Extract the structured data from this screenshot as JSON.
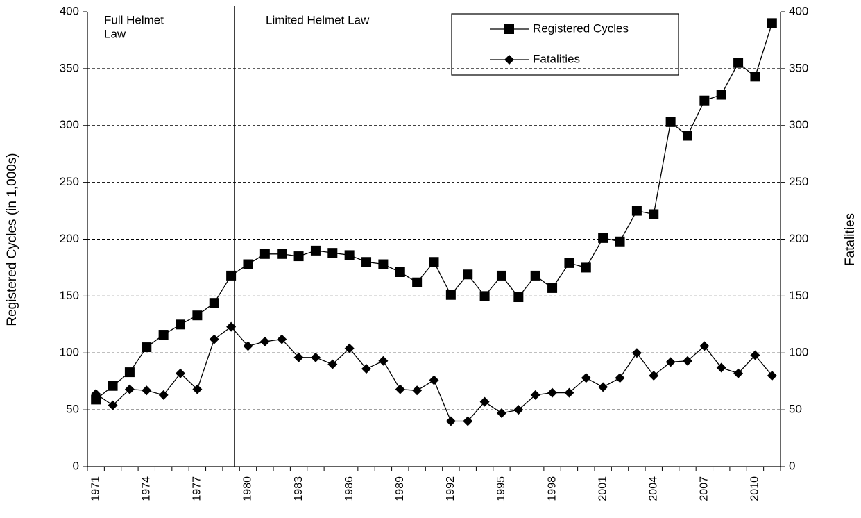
{
  "chart_data": {
    "type": "line",
    "categories": [
      "1971",
      null,
      null,
      "1974",
      null,
      null,
      "1977",
      null,
      null,
      "1980",
      null,
      null,
      "1983",
      null,
      null,
      "1986",
      null,
      null,
      "1989",
      null,
      null,
      "1992",
      null,
      null,
      "1995",
      null,
      null,
      "1998",
      null,
      null,
      "2001",
      null,
      null,
      "2004",
      null,
      null,
      "2007",
      null,
      null,
      "2010",
      null
    ],
    "series": [
      {
        "name": "Registered Cycles",
        "color": "#000000",
        "marker": "square",
        "values": [
          59,
          71,
          83,
          105,
          116,
          125,
          133,
          144,
          168,
          178,
          187,
          187,
          185,
          190,
          188,
          186,
          180,
          178,
          171,
          162,
          180,
          151,
          169,
          150,
          168,
          149,
          168,
          157,
          179,
          175,
          201,
          198,
          225,
          222,
          303,
          291,
          322,
          327,
          355,
          343,
          390
        ]
      },
      {
        "name": "Fatalities",
        "color": "#000000",
        "marker": "diamond",
        "axis": "y2",
        "values": [
          64,
          54,
          68,
          67,
          63,
          82,
          68,
          112,
          123,
          106,
          110,
          112,
          96,
          96,
          90,
          104,
          86,
          93,
          68,
          67,
          76,
          40,
          40,
          57,
          47,
          50,
          63,
          65,
          65,
          78,
          70,
          78,
          100,
          80,
          92,
          93,
          106,
          87,
          82,
          98,
          80
        ]
      }
    ],
    "ylabel": "Registered Cycles (in 1,000s)",
    "y2label": "Fatalities",
    "ylim": [
      0,
      400
    ],
    "yticks": [
      0,
      50,
      100,
      150,
      200,
      250,
      300,
      350,
      400
    ],
    "y2lim": [
      0,
      400
    ],
    "y2ticks": [
      0,
      50,
      100,
      150,
      200,
      250,
      300,
      350,
      400
    ],
    "grid": true,
    "legend": "top right",
    "annotations": [
      "Full Helmet",
      "Law",
      "Limited Helmet Law"
    ]
  }
}
